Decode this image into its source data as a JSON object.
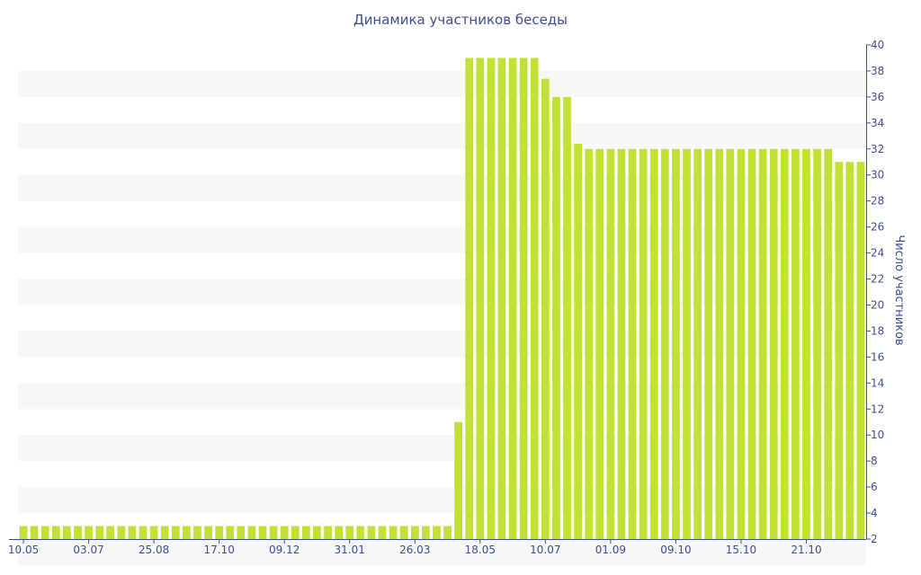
{
  "chart_data": {
    "type": "bar",
    "title": "Динамика участников беседы",
    "ylabel": "Число участников",
    "xlabel": "",
    "ylim": [
      2,
      40
    ],
    "yticks": [
      2,
      4,
      6,
      8,
      10,
      12,
      14,
      16,
      18,
      20,
      22,
      24,
      26,
      28,
      30,
      32,
      34,
      36,
      38,
      40
    ],
    "y_axis_side": "right",
    "bar_color": "#bfe234",
    "xtick_labels": [
      {
        "label": "10.05",
        "index": 0
      },
      {
        "label": "03.07",
        "index": 6
      },
      {
        "label": "25.08",
        "index": 12
      },
      {
        "label": "17.10",
        "index": 18
      },
      {
        "label": "09.12",
        "index": 24
      },
      {
        "label": "31.01",
        "index": 30
      },
      {
        "label": "26.03",
        "index": 36
      },
      {
        "label": "18.05",
        "index": 42
      },
      {
        "label": "10.07",
        "index": 48
      },
      {
        "label": "01.09",
        "index": 54
      },
      {
        "label": "09.10",
        "index": 60
      },
      {
        "label": "15.10",
        "index": 66
      },
      {
        "label": "21.10",
        "index": 72
      }
    ],
    "values": [
      3,
      3,
      3,
      3,
      3,
      3,
      3,
      3,
      3,
      3,
      3,
      3,
      3,
      3,
      3,
      3,
      3,
      3,
      3,
      3,
      3,
      3,
      3,
      3,
      3,
      3,
      3,
      3,
      3,
      3,
      3,
      3,
      3,
      3,
      3,
      3,
      3,
      3,
      3,
      3,
      11,
      39,
      39,
      39,
      39,
      39,
      39,
      39,
      37.4,
      36,
      36,
      32.4,
      32,
      32,
      32,
      32,
      32,
      32,
      32,
      32,
      32,
      32,
      32,
      32,
      32,
      32,
      32,
      32,
      32,
      32,
      32,
      32,
      32,
      32,
      32,
      31,
      31,
      31
    ]
  }
}
